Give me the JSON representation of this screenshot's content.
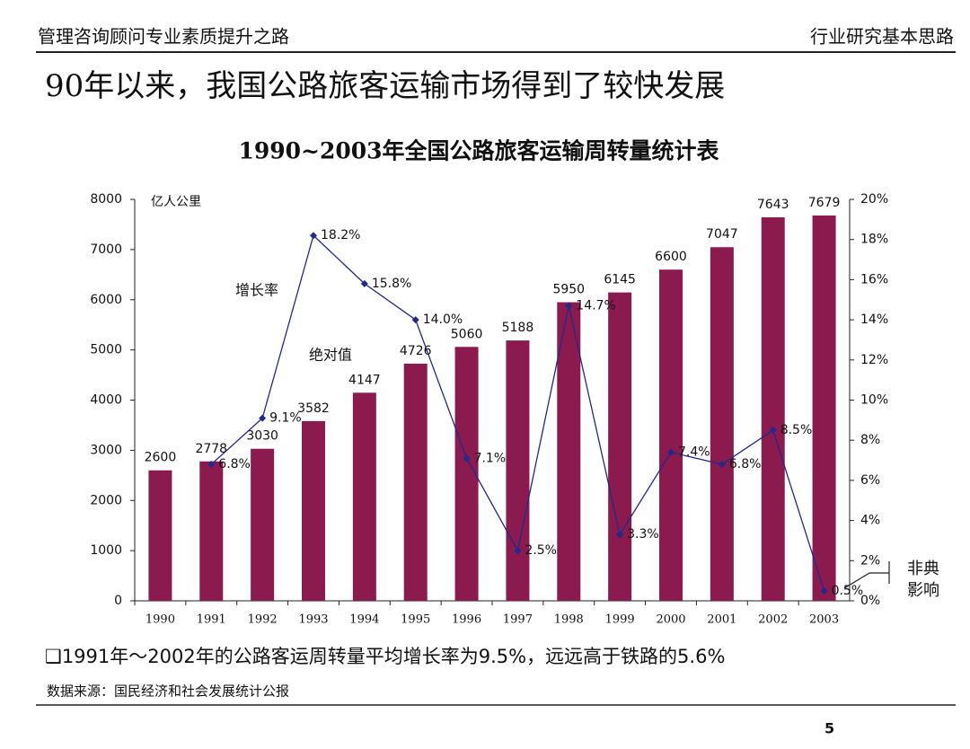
{
  "header": {
    "left": "管理咨询顾问专业素质提升之路",
    "right": "行业研究基本思路"
  },
  "title": "90年以来，我国公路旅客运输市场得到了较快发展",
  "chart_data": {
    "type": "bar",
    "title": "1990~2003年全国公路旅客运输周转量统计表",
    "unit_label": "亿人公里",
    "annotations": [
      "增长率",
      "绝对值",
      "非典",
      "影响"
    ],
    "categories": [
      "1990",
      "1991",
      "1992",
      "1993",
      "1994",
      "1995",
      "1996",
      "1997",
      "1998",
      "1999",
      "2000",
      "2001",
      "2002",
      "2003"
    ],
    "series": [
      {
        "name": "绝对值",
        "color": "#8b1a4e",
        "values": [
          2600,
          2778,
          3030,
          3582,
          4147,
          4726,
          5060,
          5188,
          5950,
          6145,
          6600,
          7047,
          7643,
          7679
        ]
      },
      {
        "name": "增长率",
        "color": "#1f2a8c",
        "axis": "y2",
        "type": "line",
        "values": [
          null,
          6.8,
          9.1,
          18.2,
          15.8,
          14.0,
          7.1,
          2.5,
          14.7,
          3.3,
          7.4,
          6.8,
          8.5,
          0.5
        ],
        "value_labels": [
          null,
          "6.8%",
          "9.1%",
          "18.2%",
          "15.8%",
          "14.0%",
          "7.1%",
          "2.5%",
          "14.7%",
          "3.3%",
          "7.4%",
          "6.8%",
          "8.5%",
          "0.5%"
        ]
      }
    ],
    "ylim": [
      0,
      8000
    ],
    "yticks": [
      0,
      1000,
      2000,
      3000,
      4000,
      5000,
      6000,
      7000,
      8000
    ],
    "y2lim": [
      0,
      20
    ],
    "y2ticks": [
      {
        "value": 0,
        "label": "0%"
      },
      {
        "value": 2,
        "label": "2%"
      },
      {
        "value": 4,
        "label": "4%"
      },
      {
        "value": 6,
        "label": "6%"
      },
      {
        "value": 8,
        "label": "8%"
      },
      {
        "value": 10,
        "label": "10%"
      },
      {
        "value": 12,
        "label": "12%"
      },
      {
        "value": 14,
        "label": "14%"
      },
      {
        "value": 16,
        "label": "16%"
      },
      {
        "value": 18,
        "label": "18%"
      },
      {
        "value": 20,
        "label": "20%"
      }
    ],
    "grid": false
  },
  "footnote": "❑1991年～2002年的公路客运周转量平均增长率为9.5%，远远高于铁路的5.6%",
  "source": "数据来源：国民经济和社会发展统计公报",
  "page_number": "5"
}
